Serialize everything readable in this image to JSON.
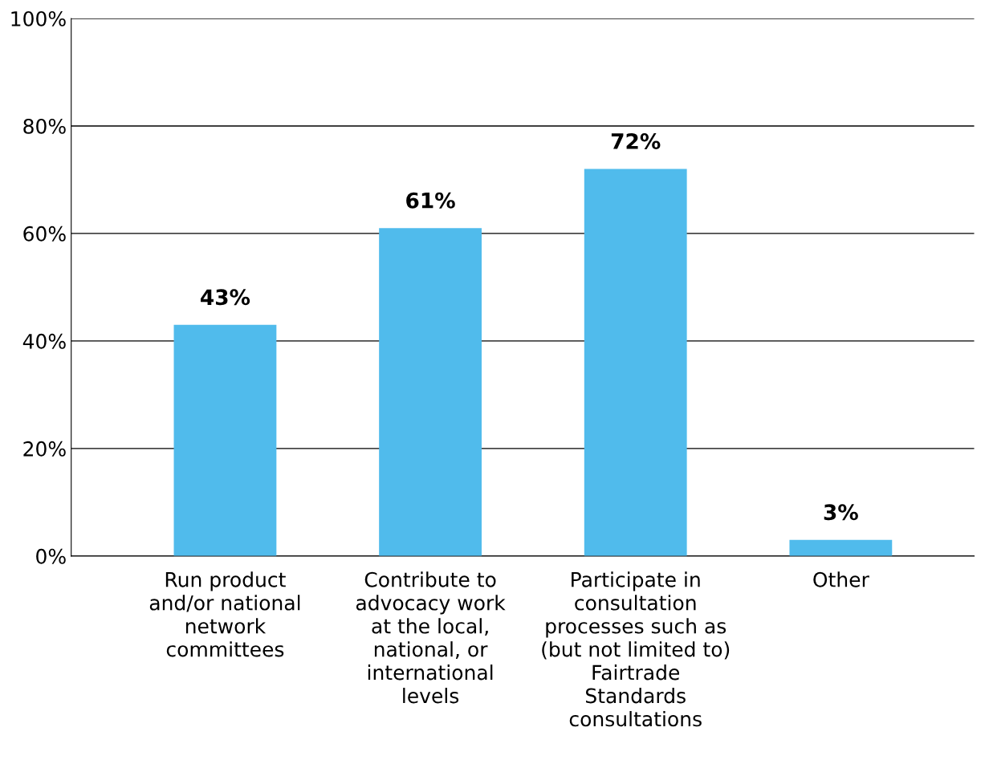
{
  "chart_data": {
    "type": "bar",
    "categories": [
      "Run product\nand/or national\nnetwork\ncommittees",
      "Contribute to\nadvocacy work\nat the local,\nnational, or\ninternational\nlevels",
      "Participate in\nconsultation\nprocesses such as\n(but not limited to)\nFairtrade\nStandards\nconsultations",
      "Other"
    ],
    "values": [
      43,
      61,
      72,
      3
    ],
    "color": "#50bbec",
    "value_labels": [
      "43%",
      "61%",
      "72%",
      "3%"
    ],
    "ylim": [
      0,
      100
    ],
    "yticks": [
      {
        "value": 0,
        "label": "0%"
      },
      {
        "value": 20,
        "label": "20%"
      },
      {
        "value": 40,
        "label": "40%"
      },
      {
        "value": 60,
        "label": "60%"
      },
      {
        "value": 80,
        "label": "80%"
      },
      {
        "value": 100,
        "label": "100%"
      }
    ],
    "grid": "y"
  }
}
